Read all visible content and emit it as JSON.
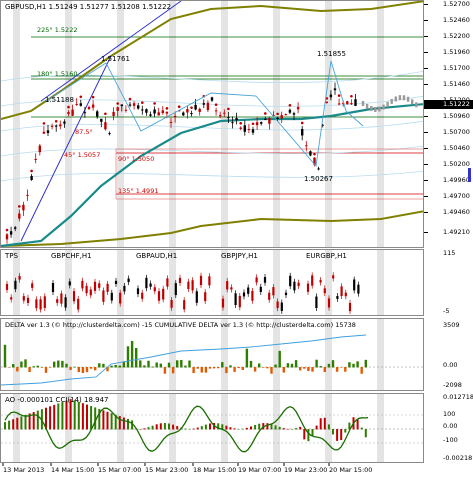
{
  "main": {
    "title": "GBPUSD,H1  1.51249 1.51277 1.51208 1.51222",
    "fib_labels": [
      "225° 1.5222",
      "180° 1.5160",
      "90° 1.5050",
      "135° 1.4991",
      "45° 1.5057",
      "87.5°"
    ],
    "price_labels": [
      "1.51761",
      "1.51855",
      "1.51188",
      "1.50267"
    ],
    "level_tags": [
      "U2",
      "U1",
      "LB",
      "D1",
      "D2",
      "D3"
    ],
    "axis": [
      "1.52700",
      "1.52460",
      "1.52200",
      "1.51960",
      "1.51700",
      "1.51460",
      "1.51200",
      "1.50960",
      "1.50700",
      "1.50460",
      "1.50200",
      "1.49960",
      "1.49700",
      "1.49460",
      "1.49210"
    ],
    "current_price": "1.51222"
  },
  "tps": {
    "title": "TPS",
    "pairs": [
      "GBPCHF,H1",
      "GBPAUD,H1",
      "GBPJPY,H1",
      "EURGBP,H1"
    ],
    "axis": [
      "115",
      "-5"
    ]
  },
  "delta": {
    "title": "DELTA ver 1.3 (© http://clusterdelta.com) -15   CUMULATIVE DELTA ver 1.3 (© http://clusterdelta.com) 15738",
    "axis": [
      "3509",
      "0.00",
      "-2098"
    ]
  },
  "ao": {
    "title": "AO -0.000101  CCI(14) 18.947",
    "axis": [
      "0.012718",
      "100",
      "0.00",
      "-100",
      "-0.002181"
    ]
  },
  "time_axis": [
    "13 Mar 2013",
    "14 Mar 15:00",
    "15 Mar 07:00",
    "15 Mar 23:00",
    "18 Mar 15:00",
    "19 Mar 07:00",
    "19 Mar 23:00",
    "20 Mar 15:00"
  ],
  "colors": {
    "bull": "#c00000",
    "bear": "#000000",
    "teal": "#1a8a8a",
    "olive": "#808000",
    "fib_red": "#d00000",
    "blue": "#3333cc",
    "delta_green": "#2e7d00",
    "delta_orange": "#e05a00",
    "cum_line": "#3ea0e0",
    "ao_red": "#c00000",
    "ao_green": "#2e7d00",
    "cci": "#1a6e00"
  }
}
